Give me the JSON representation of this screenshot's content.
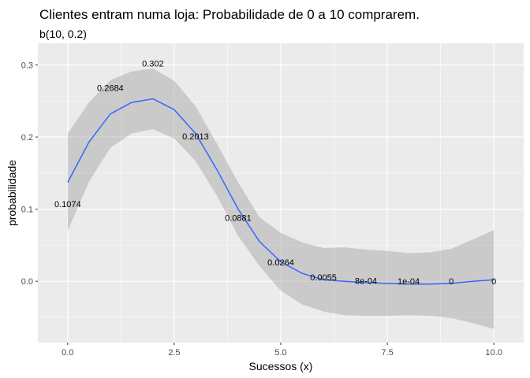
{
  "chart_data": {
    "type": "line",
    "title": "Clientes entram numa loja: Probabilidade de 0 a 10 comprarem.",
    "subtitle": "b(10, 0.2)",
    "xlabel": "Sucessos (x)",
    "ylabel": "probabilidade",
    "xlim": [
      -0.7,
      10.7
    ],
    "ylim": [
      -0.085,
      0.33
    ],
    "x_ticks": [
      0.0,
      2.5,
      5.0,
      7.5,
      10.0
    ],
    "x_tick_labels": [
      "0.0",
      "2.5",
      "5.0",
      "7.5",
      "10.0"
    ],
    "y_ticks": [
      0.0,
      0.1,
      0.2,
      0.3
    ],
    "y_tick_labels": [
      "0.0",
      "0.1",
      "0.2",
      "0.3"
    ],
    "grid": true,
    "points": {
      "x": [
        0,
        1,
        2,
        3,
        4,
        5,
        6,
        7,
        8,
        9,
        10
      ],
      "y": [
        0.1074,
        0.2684,
        0.302,
        0.2013,
        0.0881,
        0.0264,
        0.0055,
        0.0008,
        0.0001,
        0,
        0
      ],
      "labels": [
        "0.1074",
        "0.2684",
        "0.302",
        "0.2013",
        "0.0881",
        "0.0264",
        "0.0055",
        "8e-04",
        "1e-04",
        "0",
        "0"
      ]
    },
    "smooth": {
      "x": [
        0,
        0.5,
        1,
        1.5,
        2,
        2.5,
        3,
        3.5,
        4,
        4.5,
        5,
        5.5,
        6,
        6.5,
        7,
        7.5,
        8,
        8.5,
        9,
        9.5,
        10
      ],
      "y": [
        0.137,
        0.193,
        0.232,
        0.248,
        0.253,
        0.238,
        0.205,
        0.155,
        0.1,
        0.055,
        0.027,
        0.011,
        0.002,
        0,
        -0.002,
        -0.003,
        -0.004,
        -0.004,
        -0.003,
        0,
        0.002
      ],
      "lower": [
        0.07,
        0.138,
        0.185,
        0.205,
        0.211,
        0.198,
        0.167,
        0.119,
        0.063,
        0.021,
        -0.013,
        -0.032,
        -0.042,
        -0.047,
        -0.048,
        -0.048,
        -0.047,
        -0.048,
        -0.051,
        -0.058,
        -0.066
      ],
      "upper": [
        0.205,
        0.248,
        0.279,
        0.291,
        0.295,
        0.278,
        0.243,
        0.191,
        0.137,
        0.089,
        0.067,
        0.054,
        0.046,
        0.047,
        0.044,
        0.042,
        0.039,
        0.04,
        0.045,
        0.058,
        0.071
      ]
    },
    "colors": {
      "line": "#3366FF",
      "ribbon": "#999999",
      "panel": "#EBEBEB",
      "grid": "#FFFFFF",
      "text": "#000000",
      "tick_text": "#4D4D4D"
    }
  }
}
